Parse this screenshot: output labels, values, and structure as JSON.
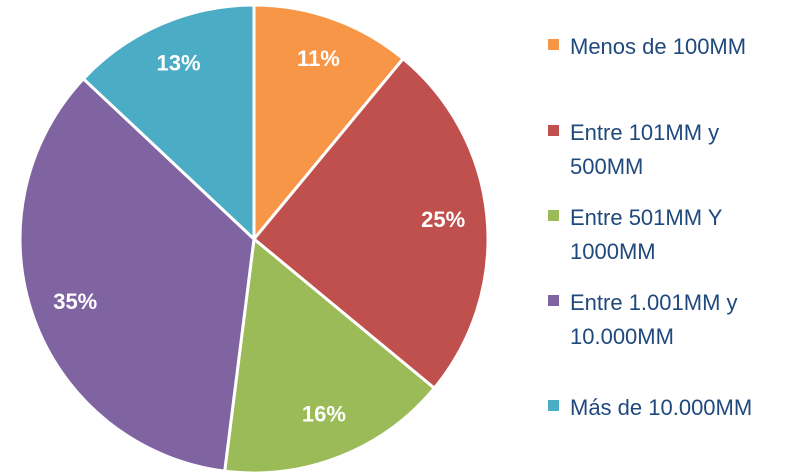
{
  "chart_data": {
    "type": "pie",
    "categories": [
      "Menos de 100MM",
      "Entre 101MM y 500MM",
      "Entre 501MM Y 1000MM",
      "Entre 1.001MM y 10.000MM",
      "Más de 10.000MM"
    ],
    "values": [
      11,
      25,
      16,
      35,
      13
    ],
    "value_labels": [
      "11%",
      "25%",
      "16%",
      "35%",
      "13%"
    ],
    "colors": [
      "#f79646",
      "#c0504d",
      "#9bbb59",
      "#8064a2",
      "#4bacc6"
    ],
    "legend": "right"
  }
}
